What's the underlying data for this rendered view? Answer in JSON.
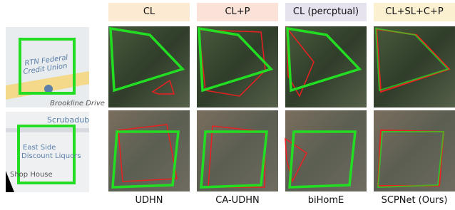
{
  "headers": [
    "CL",
    "CL+P",
    "CL (percptual)",
    "CL+SL+C+P"
  ],
  "methods": [
    "UDHN",
    "CA-UDHN",
    "biHomE",
    "SCPNet (Ours)"
  ],
  "source_labels": {
    "top": [
      "RTN Federal",
      "Credit Union",
      "Brookline Drive"
    ],
    "bottom": [
      "Scrubadub",
      "East Side",
      "Discount Liquors",
      "Shop House"
    ]
  }
}
